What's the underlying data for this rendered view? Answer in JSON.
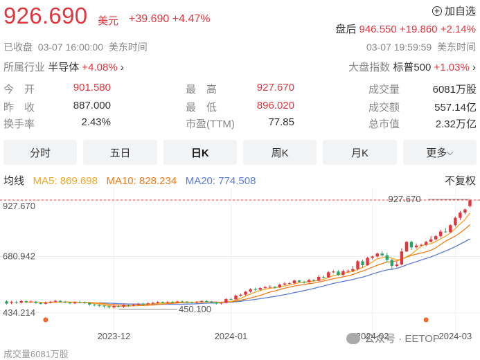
{
  "quote": {
    "price": "926.690",
    "currency": "美元",
    "change": "+39.690 +4.47%",
    "status": "已收盘",
    "time": "03-07 16:00:00",
    "tz": "美东时间"
  },
  "watchlist": {
    "label": "加自选"
  },
  "after_hours": {
    "label": "盘后",
    "value": "946.550 +19.860 +2.14%",
    "time": "03-07 19:59:59",
    "tz": "美东时间"
  },
  "industry": {
    "label": "所属行业",
    "name": "半导体",
    "change": "+4.08%"
  },
  "market_index": {
    "label": "大盘指数",
    "name": "标普500",
    "change": "+1.03%"
  },
  "stats": [
    {
      "label": "今　开",
      "value": "901.580",
      "color": "#e0363d"
    },
    {
      "label": "最　高",
      "value": "927.670",
      "color": "#e0363d"
    },
    {
      "label": "成交量",
      "value": "6081万股",
      "color": "#333333"
    },
    {
      "label": "昨　收",
      "value": "887.000",
      "color": "#333333"
    },
    {
      "label": "最　低",
      "value": "896.020",
      "color": "#e0363d"
    },
    {
      "label": "成交额",
      "value": "557.14亿",
      "color": "#333333"
    },
    {
      "label": "换手率",
      "value": "2.43%",
      "color": "#333333"
    },
    {
      "label": "市盈(TTM)",
      "value": "77.85",
      "color": "#333333"
    },
    {
      "label": "总市值",
      "value": "2.32万亿",
      "color": "#333333"
    }
  ],
  "tabs": [
    {
      "label": "分时"
    },
    {
      "label": "五日"
    },
    {
      "label": "日K"
    },
    {
      "label": "周K"
    },
    {
      "label": "月K"
    },
    {
      "label": "更多"
    }
  ],
  "ma_legend": {
    "label": "均线",
    "ma5": "MA5: 869.698",
    "ma10": "MA10: 828.234",
    "ma20": "MA20: 774.508",
    "adjust": "不复权",
    "colors": {
      "ma5": "#f5a623",
      "ma10": "#f07a1a",
      "ma20": "#5b7bd5",
      "up": "#e0363d",
      "down": "#27a567"
    }
  },
  "chart_data": {
    "type": "candlestick",
    "y_ticks": [
      "927.670",
      "680.942",
      "434.214"
    ],
    "x_ticks": [
      "2023-12",
      "2024-01",
      "2024-02",
      "2024-03"
    ],
    "high_label": "927.670",
    "low_label": "450.100",
    "ylim": [
      434.214,
      927.67
    ],
    "candles": [
      [
        485,
        475,
        490,
        470
      ],
      [
        478,
        482,
        487,
        472
      ],
      [
        482,
        479,
        488,
        474
      ],
      [
        479,
        486,
        492,
        476
      ],
      [
        486,
        481,
        489,
        477
      ],
      [
        481,
        484,
        490,
        478
      ],
      [
        484,
        478,
        486,
        474
      ],
      [
        478,
        474,
        481,
        470
      ],
      [
        474,
        479,
        484,
        471
      ],
      [
        479,
        483,
        487,
        476
      ],
      [
        483,
        487,
        492,
        480
      ],
      [
        487,
        483,
        490,
        479
      ],
      [
        483,
        480,
        487,
        476
      ],
      [
        480,
        476,
        483,
        472
      ],
      [
        476,
        481,
        485,
        473
      ],
      [
        481,
        480,
        488,
        477
      ],
      [
        480,
        478,
        484,
        474
      ],
      [
        478,
        471,
        480,
        466
      ],
      [
        471,
        468,
        474,
        463
      ],
      [
        468,
        466,
        472,
        460
      ],
      [
        466,
        463,
        469,
        456
      ],
      [
        463,
        459,
        467,
        453
      ],
      [
        459,
        465,
        469,
        454
      ],
      [
        465,
        462,
        470,
        458
      ],
      [
        462,
        468,
        472,
        457
      ],
      [
        468,
        466,
        471,
        461
      ],
      [
        466,
        470,
        475,
        463
      ],
      [
        470,
        474,
        478,
        466
      ],
      [
        474,
        472,
        479,
        468
      ],
      [
        472,
        476,
        481,
        469
      ],
      [
        476,
        478,
        483,
        472
      ],
      [
        478,
        482,
        486,
        474
      ],
      [
        482,
        479,
        485,
        474
      ],
      [
        479,
        482,
        487,
        476
      ],
      [
        482,
        480,
        487,
        477
      ],
      [
        480,
        484,
        488,
        478
      ],
      [
        484,
        482,
        489,
        479
      ],
      [
        482,
        481,
        486,
        478
      ],
      [
        481,
        479,
        484,
        476
      ],
      [
        479,
        482,
        486,
        476
      ],
      [
        482,
        486,
        490,
        479
      ],
      [
        486,
        484,
        491,
        481
      ],
      [
        484,
        480,
        487,
        477
      ],
      [
        480,
        475,
        483,
        471
      ],
      [
        475,
        478,
        481,
        471
      ],
      [
        478,
        495,
        498,
        476
      ],
      [
        495,
        494,
        501,
        490
      ],
      [
        494,
        510,
        514,
        491
      ],
      [
        510,
        514,
        519,
        506
      ],
      [
        514,
        527,
        530,
        510
      ],
      [
        527,
        538,
        542,
        522
      ],
      [
        538,
        536,
        545,
        530
      ],
      [
        536,
        543,
        547,
        531
      ],
      [
        543,
        547,
        552,
        540
      ],
      [
        547,
        548,
        555,
        542
      ],
      [
        548,
        546,
        552,
        540
      ],
      [
        546,
        558,
        562,
        543
      ],
      [
        558,
        563,
        569,
        555
      ],
      [
        563,
        564,
        569,
        559
      ],
      [
        564,
        576,
        580,
        560
      ],
      [
        576,
        570,
        579,
        565
      ],
      [
        570,
        569,
        575,
        562
      ],
      [
        569,
        578,
        583,
        566
      ],
      [
        578,
        575,
        582,
        570
      ],
      [
        575,
        592,
        600,
        572
      ],
      [
        592,
        590,
        598,
        584
      ],
      [
        590,
        612,
        617,
        587
      ],
      [
        612,
        615,
        620,
        608
      ],
      [
        615,
        600,
        622,
        596
      ],
      [
        600,
        617,
        624,
        597
      ],
      [
        617,
        618,
        624,
        610
      ],
      [
        618,
        626,
        640,
        613
      ],
      [
        626,
        660,
        665,
        620
      ],
      [
        660,
        643,
        667,
        633
      ],
      [
        643,
        675,
        680,
        641
      ],
      [
        675,
        681,
        685,
        668
      ],
      [
        681,
        694,
        698,
        676
      ],
      [
        694,
        686,
        704,
        681
      ],
      [
        686,
        666,
        697,
        655
      ],
      [
        666,
        640,
        670,
        622
      ],
      [
        640,
        646,
        659,
        633
      ],
      [
        646,
        703,
        717,
        642
      ],
      [
        703,
        745,
        748,
        700
      ],
      [
        745,
        721,
        750,
        710
      ],
      [
        721,
        729,
        738,
        716
      ],
      [
        729,
        732,
        738,
        726
      ],
      [
        732,
        745,
        750,
        726
      ],
      [
        745,
        756,
        771,
        742
      ],
      [
        756,
        770,
        776,
        750
      ],
      [
        770,
        790,
        798,
        764
      ],
      [
        790,
        787,
        806,
        785
      ],
      [
        787,
        818,
        822,
        785
      ],
      [
        818,
        850,
        855,
        812
      ],
      [
        850,
        873,
        880,
        840
      ],
      [
        873,
        887,
        890,
        865
      ],
      [
        901.58,
        926.69,
        927.67,
        896.02
      ]
    ]
  },
  "footer": {
    "volume": "成交量6081万股"
  },
  "watermark": {
    "text": "公众号 · EETOP"
  }
}
